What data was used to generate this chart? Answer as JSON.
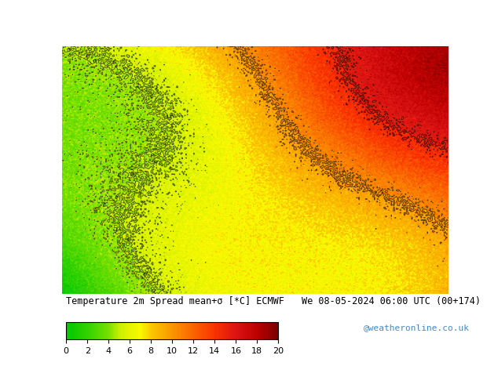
{
  "title_left": "Temperature 2m Spread mean+σ [*C] ECMWF",
  "title_right": "We 08-05-2024 06:00 UTC (00+174)",
  "colorbar_label": "",
  "colorbar_ticks": [
    0,
    2,
    4,
    6,
    8,
    10,
    12,
    14,
    16,
    18,
    20
  ],
  "colorbar_colors": [
    "#00c800",
    "#32d200",
    "#64dc00",
    "#96e600",
    "#c8f000",
    "#fafa00",
    "#fac800",
    "#fa9600",
    "#fa6400",
    "#fa3200",
    "#dc1414",
    "#be0000",
    "#960000",
    "#780000",
    "#5a0000"
  ],
  "map_bg_color": "#7ab97a",
  "credit": "@weatheronline.co.uk",
  "fig_width": 6.34,
  "fig_height": 4.9,
  "dpi": 100,
  "colorbar_vmin": 0,
  "colorbar_vmax": 20
}
